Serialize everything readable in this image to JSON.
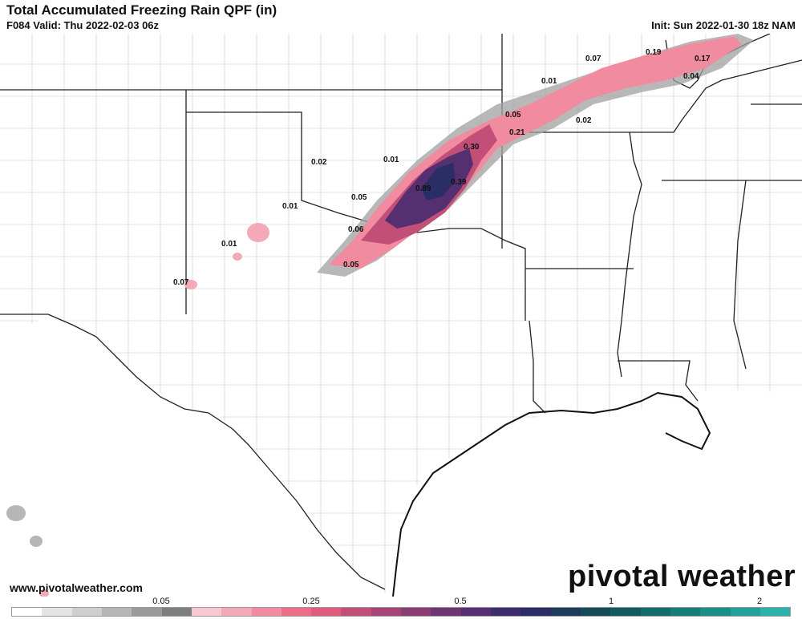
{
  "header": {
    "title": "Total Accumulated Freezing Rain QPF (in)",
    "valid": "F084 Valid: Thu 2022-02-03 06z",
    "init": "Init: Sun 2022-01-30 18z NAM"
  },
  "footer": {
    "website": "www.pivotalweather.com",
    "brand": "pivotal weather"
  },
  "map_labels": [
    {
      "text": "0.07"
    },
    {
      "text": "0.19"
    },
    {
      "text": "0.17"
    },
    {
      "text": "0.04"
    },
    {
      "text": "0.01"
    },
    {
      "text": "0.05"
    },
    {
      "text": "0.02"
    },
    {
      "text": "0.21"
    },
    {
      "text": "0.30"
    },
    {
      "text": "0.02"
    },
    {
      "text": "0.01"
    },
    {
      "text": "0.89"
    },
    {
      "text": "0.39"
    },
    {
      "text": "0.05"
    },
    {
      "text": "0.01"
    },
    {
      "text": "0.06"
    },
    {
      "text": "0.01"
    },
    {
      "text": "0.05"
    },
    {
      "text": "0.07"
    }
  ],
  "legend": {
    "tick_labels": [
      "0.05",
      "0.25",
      "0.5",
      "1",
      "2"
    ],
    "colors": [
      "#ffffff",
      "#e4e4e4",
      "#cfcfcf",
      "#b6b6b6",
      "#9a9a9a",
      "#7e7e7e",
      "#f7c8d2",
      "#f4a9b8",
      "#f08ba0",
      "#ec6d88",
      "#e05c7c",
      "#c24f78",
      "#a64575",
      "#8a3c73",
      "#6e3571",
      "#552f6f",
      "#3e2c6c",
      "#2b2d66",
      "#1e3a5c",
      "#154a58",
      "#115a5e",
      "#126c6a",
      "#157d78",
      "#1a8f88",
      "#22a099",
      "#2ab2ab"
    ]
  },
  "colors": {
    "border_state": "#222222",
    "border_county": "#bdbdbd",
    "coast": "#111111"
  }
}
